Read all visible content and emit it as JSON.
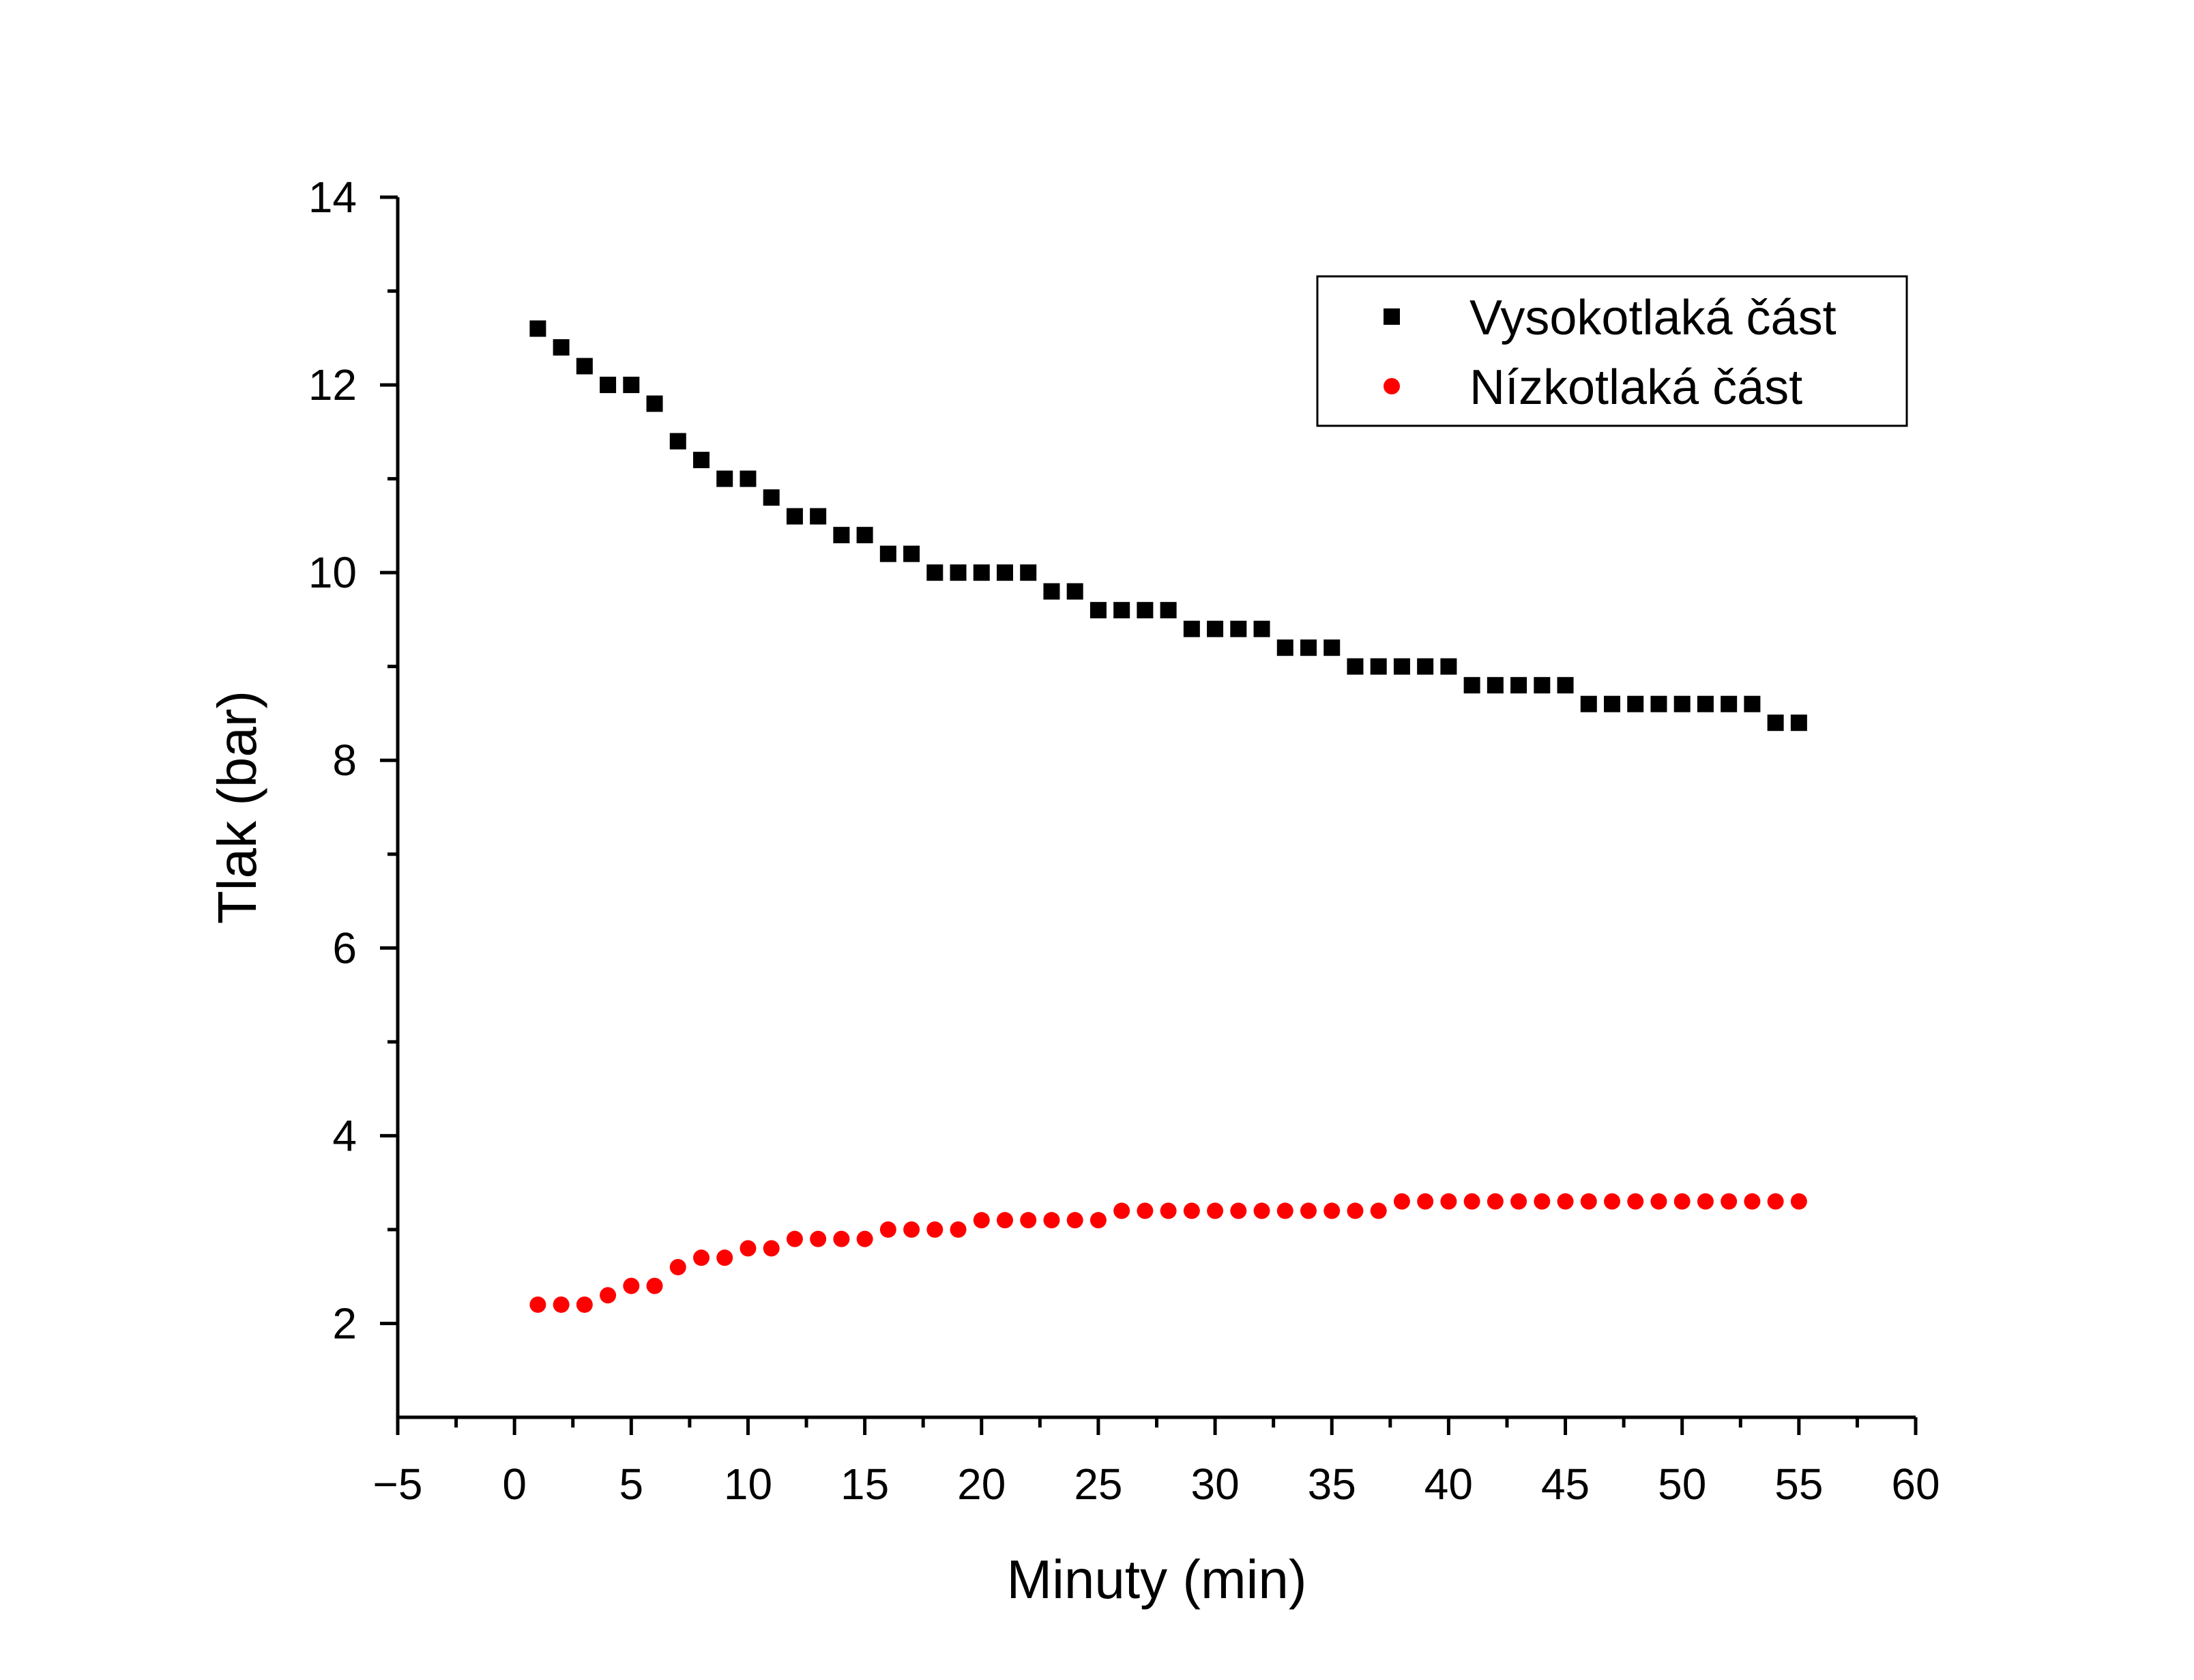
{
  "chart_data": {
    "type": "scatter",
    "title": "",
    "xlabel": "Minuty (min)",
    "ylabel": "Tlak (bar)",
    "xlim": [
      -5,
      60
    ],
    "ylim": [
      1,
      14
    ],
    "xticks": [
      -5,
      0,
      5,
      10,
      15,
      20,
      25,
      30,
      35,
      40,
      45,
      50,
      55,
      60
    ],
    "xtick_labels": [
      "−5",
      "0",
      "5",
      "10",
      "15",
      "20",
      "25",
      "30",
      "35",
      "40",
      "45",
      "50",
      "55",
      "60"
    ],
    "yticks": [
      2,
      4,
      6,
      8,
      10,
      12,
      14
    ],
    "ytick_labels": [
      "2",
      "4",
      "6",
      "8",
      "10",
      "12",
      "14"
    ],
    "grid": false,
    "legend_position": "top-right",
    "series": [
      {
        "name": "Vysokotlaká část",
        "marker": "square",
        "color": "#000000",
        "x": [
          1,
          2,
          3,
          4,
          5,
          6,
          7,
          8,
          9,
          10,
          11,
          12,
          13,
          14,
          15,
          16,
          17,
          18,
          19,
          20,
          21,
          22,
          23,
          24,
          25,
          26,
          27,
          28,
          29,
          30,
          31,
          32,
          33,
          34,
          35,
          36,
          37,
          38,
          39,
          40,
          41,
          42,
          43,
          44,
          45,
          46,
          47,
          48,
          49,
          50,
          51,
          52,
          53,
          54,
          55
        ],
        "y": [
          12.6,
          12.4,
          12.2,
          12.0,
          12.0,
          11.8,
          11.4,
          11.2,
          11.0,
          11.0,
          10.8,
          10.6,
          10.6,
          10.4,
          10.4,
          10.2,
          10.2,
          10.0,
          10.0,
          10.0,
          10.0,
          10.0,
          9.8,
          9.8,
          9.6,
          9.6,
          9.6,
          9.6,
          9.4,
          9.4,
          9.4,
          9.4,
          9.2,
          9.2,
          9.2,
          9.0,
          9.0,
          9.0,
          9.0,
          9.0,
          8.8,
          8.8,
          8.8,
          8.8,
          8.8,
          8.6,
          8.6,
          8.6,
          8.6,
          8.6,
          8.6,
          8.6,
          8.6,
          8.4,
          8.4
        ]
      },
      {
        "name": "Nízkotlaká část",
        "marker": "circle",
        "color": "#ff0000",
        "x": [
          1,
          2,
          3,
          4,
          5,
          6,
          7,
          8,
          9,
          10,
          11,
          12,
          13,
          14,
          15,
          16,
          17,
          18,
          19,
          20,
          21,
          22,
          23,
          24,
          25,
          26,
          27,
          28,
          29,
          30,
          31,
          32,
          33,
          34,
          35,
          36,
          37,
          38,
          39,
          40,
          41,
          42,
          43,
          44,
          45,
          46,
          47,
          48,
          49,
          50,
          51,
          52,
          53,
          54,
          55
        ],
        "y": [
          2.2,
          2.2,
          2.2,
          2.3,
          2.4,
          2.4,
          2.6,
          2.7,
          2.7,
          2.8,
          2.8,
          2.9,
          2.9,
          2.9,
          2.9,
          3.0,
          3.0,
          3.0,
          3.0,
          3.1,
          3.1,
          3.1,
          3.1,
          3.1,
          3.1,
          3.2,
          3.2,
          3.2,
          3.2,
          3.2,
          3.2,
          3.2,
          3.2,
          3.2,
          3.2,
          3.2,
          3.2,
          3.3,
          3.3,
          3.3,
          3.3,
          3.3,
          3.3,
          3.3,
          3.3,
          3.3,
          3.3,
          3.3,
          3.3,
          3.3,
          3.3,
          3.3,
          3.3,
          3.3,
          3.3
        ]
      }
    ]
  }
}
